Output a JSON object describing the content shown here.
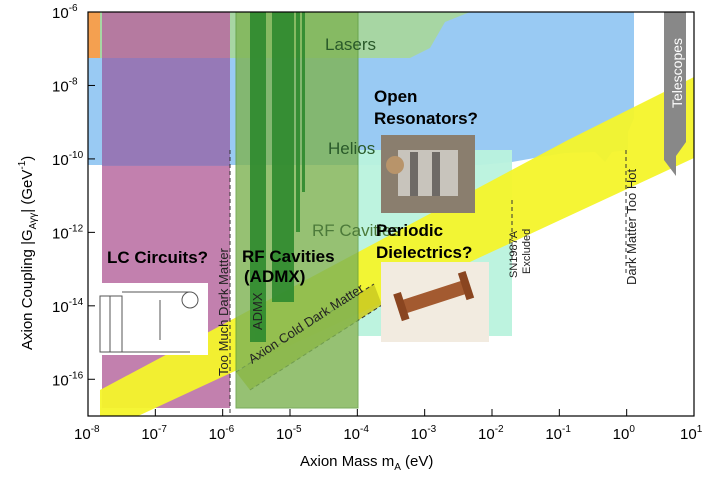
{
  "chart_data": {
    "type": "area",
    "xscale": "log",
    "yscale": "log",
    "xlim": [
      "1e-8",
      "10"
    ],
    "ylim": [
      "1e-17",
      "1e-6"
    ],
    "xlabel": "Axion Mass m",
    "xlabel_sub": "A",
    "xlabel_unit": " (eV)",
    "ylabel": "Axion Coupling |G",
    "ylabel_sub": "Aγγ",
    "ylabel_unit": "| (GeV",
    "ylabel_unit_sup": "-1",
    "ylabel_close": ")",
    "x_ticks": [
      {
        "base": "10",
        "exp": "-8",
        "value": 1e-08
      },
      {
        "base": "10",
        "exp": "-7",
        "value": 1e-07
      },
      {
        "base": "10",
        "exp": "-6",
        "value": 1e-06
      },
      {
        "base": "10",
        "exp": "-5",
        "value": 1e-05
      },
      {
        "base": "10",
        "exp": "-4",
        "value": 0.0001
      },
      {
        "base": "10",
        "exp": "-3",
        "value": 0.001
      },
      {
        "base": "10",
        "exp": "-2",
        "value": 0.01
      },
      {
        "base": "10",
        "exp": "-1",
        "value": 0.1
      },
      {
        "base": "10",
        "exp": "0",
        "value": 1
      },
      {
        "base": "10",
        "exp": "1",
        "value": 10
      }
    ],
    "y_ticks": [
      {
        "base": "10",
        "exp": "-6",
        "value": 1e-06
      },
      {
        "base": "10",
        "exp": "-8",
        "value": 1e-08
      },
      {
        "base": "10",
        "exp": "-10",
        "value": 1e-10
      },
      {
        "base": "10",
        "exp": "-12",
        "value": 1e-12
      },
      {
        "base": "10",
        "exp": "-14",
        "value": 1e-14
      },
      {
        "base": "10",
        "exp": "-16",
        "value": 1e-16
      }
    ],
    "regions": [
      {
        "name": "Lasers",
        "color": "#9fce9f",
        "x_range": [
          1e-08,
          0.03
        ],
        "y_range": [
          5e-08,
          1e-06
        ]
      },
      {
        "name": "Helios",
        "color": "#94c7f2",
        "x_range": [
          1e-08,
          1.5
        ],
        "y_range": [
          1e-10,
          1e-06
        ]
      },
      {
        "name": "LC Circuits?",
        "color": "#b56ea0",
        "x_range": [
          1.2e-08,
          1.1e-06
        ],
        "y_range": [
          1.2e-17,
          1e-06
        ]
      },
      {
        "name": "RF Cavities (ADMX)",
        "color": "#7fb455",
        "x_range": [
          1.2e-06,
          9e-05
        ],
        "y_range": [
          1.2e-17,
          1e-06
        ]
      },
      {
        "name": "Open Resonators?",
        "color": "#b9f2dd",
        "x_range": [
          9e-05,
          0.018
        ],
        "y_range": [
          1.5e-15,
          1e-10
        ]
      },
      {
        "name": "Periodic Dielectrics?",
        "color": "#b9f2dd",
        "x_range": [
          9e-05,
          0.018
        ],
        "y_range": [
          1.5e-15,
          1e-12
        ]
      }
    ],
    "band": {
      "name": "Axion Cold Dark Matter",
      "color": "#f4f42a"
    },
    "annotations": [
      {
        "text": "Lasers"
      },
      {
        "text": "Helios"
      },
      {
        "text": "RF Cavities"
      },
      {
        "text": "ADMX"
      },
      {
        "text": "Too Much Dark Matter"
      },
      {
        "text": "Axion Cold Dark Matter"
      },
      {
        "text": "SN1987A"
      },
      {
        "text": "Excluded"
      },
      {
        "text": "Dark Matter Too Hot"
      },
      {
        "text": "Telescopes"
      },
      {
        "text": "LC Circuits?"
      },
      {
        "text": "RF Cavities"
      },
      {
        "text": "(ADMX)"
      },
      {
        "text": "Open"
      },
      {
        "text": "Resonators?"
      },
      {
        "text": "Periodic"
      },
      {
        "text": "Dielectrics?"
      }
    ]
  },
  "colors": {
    "lasers": "#9fce9f",
    "helios": "#94c7f2",
    "lc": "#b56ea0",
    "rf": "#7fb455",
    "open": "#b9f2dd",
    "band": "#f4f42a",
    "admx_bars": "#2e8a2e",
    "telescope": "#888888"
  }
}
